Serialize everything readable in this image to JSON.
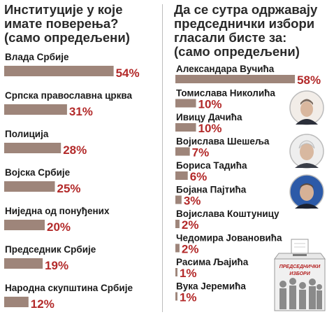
{
  "colors": {
    "bar": "#9e857a",
    "value": "#b32a2a",
    "frame": "#bbbbbb"
  },
  "left": {
    "title_lines": [
      "Институције у које",
      "имате поверења?",
      "(само опредељени)"
    ]
  },
  "right": {
    "title_lines": [
      "Да се сутра одржавају",
      "председнички избори",
      "гласали бисте за:",
      "(само опредељени)"
    ],
    "ballot_box_lines": [
      "ПРЕДСЕДНИЧКИ",
      "ИЗБОРИ"
    ]
  },
  "chart_data": [
    {
      "type": "bar",
      "orientation": "horizontal",
      "title": "Институције у које имате поверења? (само опредељени)",
      "categories": [
        "Влада Србије",
        "Српска православна црква",
        "Полиција",
        "Војска Србије",
        "Ниједна од понуђених",
        "Председник Србије",
        "Народна скупштина Србије"
      ],
      "values": [
        54,
        31,
        28,
        25,
        20,
        19,
        12
      ],
      "value_labels": [
        "54%",
        "31%",
        "28%",
        "25%",
        "20%",
        "19%",
        "12%"
      ],
      "unit": "%"
    },
    {
      "type": "bar",
      "orientation": "horizontal",
      "title": "Да се сутра одржавају председнички избори гласали бисте за: (само опредељени)",
      "categories": [
        "Александара Вучића",
        "Томислава Николића",
        "Ивицу Дачића",
        "Војислава Шешеља",
        "Бориса Тадића",
        "Бојана Пајтића",
        "Војислава Коштуницу",
        "Чедомира Јовановића",
        "Расима Љајића",
        "Вука Јеремића"
      ],
      "values": [
        58,
        10,
        10,
        7,
        6,
        3,
        2,
        2,
        1,
        1
      ],
      "value_labels": [
        "58%",
        "10%",
        "10%",
        "7%",
        "6%",
        "3%",
        "2%",
        "2%",
        "1%",
        "1%"
      ],
      "unit": "%"
    }
  ]
}
